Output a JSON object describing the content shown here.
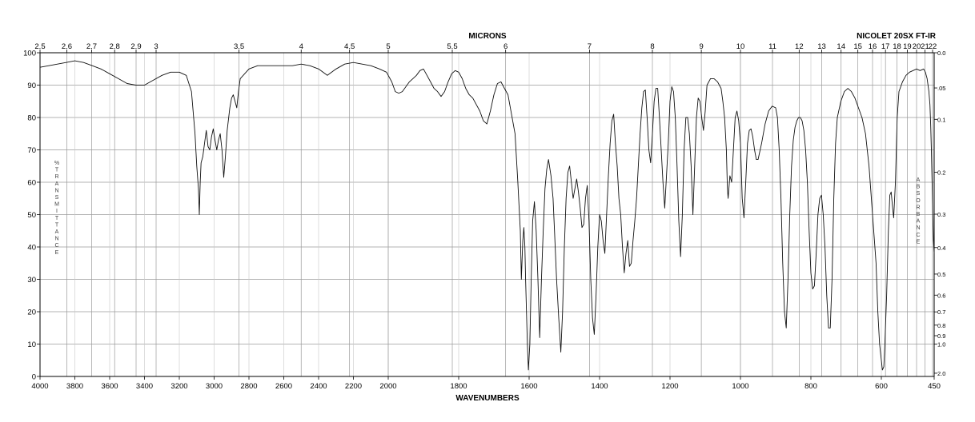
{
  "chart_data": {
    "type": "line",
    "top_title": "MICRONS",
    "instrument": "NICOLET 20SX FT-IR",
    "xlabel": "WAVENUMBERS",
    "ylabel_left": "%TRANSMITTANCE",
    "ylabel_right": "ABSORBANCE",
    "x_range": [
      4000,
      450
    ],
    "x_break": 2000,
    "y_range": [
      0,
      100
    ],
    "x_ticks": [
      4000,
      3800,
      3600,
      3400,
      3200,
      3000,
      2800,
      2600,
      2400,
      2200,
      2000,
      1800,
      1600,
      1400,
      1200,
      1000,
      800,
      600,
      450
    ],
    "y_ticks": [
      0,
      10,
      20,
      30,
      40,
      50,
      60,
      70,
      80,
      90,
      100
    ],
    "micron_ticks": [
      "2.5",
      "2.6",
      "2.7",
      "2.8",
      "2.9",
      "3",
      "3.5",
      "4",
      "4.5",
      "5",
      "5.5",
      "6",
      "7",
      "8",
      "9",
      "10",
      "11",
      "12",
      "13",
      "14",
      "15",
      "16",
      "17",
      "18",
      "19",
      "20",
      "21",
      "22"
    ],
    "absorbance_ticks": [
      "0.0",
      ".05",
      "0.1",
      "0.2",
      "0.3",
      "0.4",
      "0.5",
      "0.6",
      "0.7",
      "0.8",
      "0.9",
      "1.0",
      "2.0"
    ],
    "grid": true,
    "series": [
      {
        "points": [
          [
            4000,
            95.5
          ],
          [
            3950,
            96
          ],
          [
            3900,
            96.5
          ],
          [
            3850,
            97
          ],
          [
            3800,
            97.5
          ],
          [
            3750,
            97
          ],
          [
            3700,
            96
          ],
          [
            3650,
            95
          ],
          [
            3600,
            93.5
          ],
          [
            3550,
            92
          ],
          [
            3500,
            90.5
          ],
          [
            3450,
            90
          ],
          [
            3400,
            90
          ],
          [
            3350,
            91.5
          ],
          [
            3300,
            93
          ],
          [
            3250,
            94
          ],
          [
            3200,
            94
          ],
          [
            3160,
            93
          ],
          [
            3130,
            88
          ],
          [
            3110,
            75
          ],
          [
            3100,
            65
          ],
          [
            3090,
            58
          ],
          [
            3085,
            50
          ],
          [
            3080,
            60
          ],
          [
            3075,
            66
          ],
          [
            3065,
            68
          ],
          [
            3055,
            72
          ],
          [
            3045,
            76
          ],
          [
            3035,
            71
          ],
          [
            3025,
            70
          ],
          [
            3015,
            74
          ],
          [
            3005,
            76.5
          ],
          [
            2995,
            73
          ],
          [
            2985,
            70
          ],
          [
            2975,
            73
          ],
          [
            2965,
            75
          ],
          [
            2955,
            70
          ],
          [
            2945,
            61.5
          ],
          [
            2935,
            68
          ],
          [
            2925,
            76
          ],
          [
            2910,
            83
          ],
          [
            2900,
            86
          ],
          [
            2890,
            87
          ],
          [
            2880,
            85
          ],
          [
            2870,
            83
          ],
          [
            2860,
            88
          ],
          [
            2850,
            92
          ],
          [
            2800,
            95
          ],
          [
            2750,
            96
          ],
          [
            2700,
            96
          ],
          [
            2650,
            96
          ],
          [
            2600,
            96
          ],
          [
            2550,
            96
          ],
          [
            2500,
            96.5
          ],
          [
            2450,
            96
          ],
          [
            2400,
            95
          ],
          [
            2350,
            93
          ],
          [
            2300,
            95
          ],
          [
            2250,
            96.5
          ],
          [
            2200,
            97
          ],
          [
            2150,
            96.5
          ],
          [
            2100,
            96
          ],
          [
            2050,
            95
          ],
          [
            2010,
            94
          ],
          [
            1990,
            91
          ],
          [
            1980,
            88
          ],
          [
            1970,
            87.5
          ],
          [
            1960,
            88
          ],
          [
            1950,
            89.5
          ],
          [
            1940,
            91
          ],
          [
            1930,
            92
          ],
          [
            1920,
            93
          ],
          [
            1910,
            94.5
          ],
          [
            1900,
            95
          ],
          [
            1890,
            93
          ],
          [
            1880,
            91
          ],
          [
            1870,
            89
          ],
          [
            1860,
            88
          ],
          [
            1850,
            86.5
          ],
          [
            1840,
            88
          ],
          [
            1830,
            91
          ],
          [
            1820,
            93.5
          ],
          [
            1810,
            94.5
          ],
          [
            1800,
            94
          ],
          [
            1790,
            92
          ],
          [
            1780,
            89
          ],
          [
            1770,
            87
          ],
          [
            1760,
            86
          ],
          [
            1750,
            84
          ],
          [
            1740,
            82
          ],
          [
            1730,
            79
          ],
          [
            1720,
            78
          ],
          [
            1710,
            82
          ],
          [
            1700,
            87
          ],
          [
            1690,
            90.5
          ],
          [
            1680,
            91
          ],
          [
            1670,
            89
          ],
          [
            1660,
            87
          ],
          [
            1650,
            81
          ],
          [
            1640,
            75
          ],
          [
            1632,
            60
          ],
          [
            1625,
            45
          ],
          [
            1622,
            30
          ],
          [
            1618,
            42
          ],
          [
            1615,
            46
          ],
          [
            1612,
            40
          ],
          [
            1610,
            30
          ],
          [
            1605,
            10
          ],
          [
            1602,
            2
          ],
          [
            1598,
            10
          ],
          [
            1594,
            30
          ],
          [
            1590,
            48
          ],
          [
            1585,
            54
          ],
          [
            1580,
            45
          ],
          [
            1575,
            30
          ],
          [
            1570,
            12
          ],
          [
            1565,
            30
          ],
          [
            1560,
            45
          ],
          [
            1555,
            58
          ],
          [
            1550,
            64
          ],
          [
            1545,
            67
          ],
          [
            1538,
            62
          ],
          [
            1532,
            55
          ],
          [
            1528,
            45
          ],
          [
            1522,
            30
          ],
          [
            1516,
            18
          ],
          [
            1510,
            7.5
          ],
          [
            1505,
            20
          ],
          [
            1500,
            40
          ],
          [
            1495,
            55
          ],
          [
            1490,
            63
          ],
          [
            1485,
            65
          ],
          [
            1480,
            60
          ],
          [
            1475,
            55
          ],
          [
            1470,
            58
          ],
          [
            1465,
            61
          ],
          [
            1460,
            57
          ],
          [
            1455,
            52
          ],
          [
            1450,
            46
          ],
          [
            1445,
            47
          ],
          [
            1440,
            55
          ],
          [
            1435,
            59
          ],
          [
            1430,
            48
          ],
          [
            1425,
            30
          ],
          [
            1420,
            18
          ],
          [
            1415,
            13
          ],
          [
            1410,
            25
          ],
          [
            1405,
            40
          ],
          [
            1400,
            50
          ],
          [
            1395,
            48
          ],
          [
            1390,
            42
          ],
          [
            1385,
            38
          ],
          [
            1380,
            50
          ],
          [
            1375,
            62
          ],
          [
            1370,
            72
          ],
          [
            1365,
            79
          ],
          [
            1360,
            81
          ],
          [
            1355,
            72
          ],
          [
            1350,
            65
          ],
          [
            1345,
            55
          ],
          [
            1340,
            50
          ],
          [
            1335,
            40
          ],
          [
            1330,
            32
          ],
          [
            1325,
            38
          ],
          [
            1320,
            42
          ],
          [
            1315,
            34
          ],
          [
            1310,
            35
          ],
          [
            1305,
            42
          ],
          [
            1300,
            48
          ],
          [
            1295,
            55
          ],
          [
            1290,
            65
          ],
          [
            1285,
            75
          ],
          [
            1280,
            83
          ],
          [
            1275,
            88
          ],
          [
            1270,
            88.5
          ],
          [
            1265,
            80
          ],
          [
            1260,
            70
          ],
          [
            1255,
            66
          ],
          [
            1250,
            75
          ],
          [
            1245,
            85
          ],
          [
            1240,
            89
          ],
          [
            1235,
            89
          ],
          [
            1230,
            80
          ],
          [
            1225,
            70
          ],
          [
            1220,
            60
          ],
          [
            1215,
            52
          ],
          [
            1210,
            62
          ],
          [
            1205,
            72
          ],
          [
            1200,
            85
          ],
          [
            1195,
            89.5
          ],
          [
            1190,
            88
          ],
          [
            1185,
            80
          ],
          [
            1180,
            65
          ],
          [
            1175,
            48
          ],
          [
            1170,
            37
          ],
          [
            1165,
            50
          ],
          [
            1160,
            70
          ],
          [
            1155,
            80
          ],
          [
            1150,
            80
          ],
          [
            1145,
            75
          ],
          [
            1140,
            65
          ],
          [
            1135,
            50
          ],
          [
            1130,
            65
          ],
          [
            1125,
            80
          ],
          [
            1120,
            86
          ],
          [
            1115,
            85
          ],
          [
            1110,
            80
          ],
          [
            1105,
            76
          ],
          [
            1100,
            82
          ],
          [
            1095,
            90
          ],
          [
            1085,
            92
          ],
          [
            1075,
            92
          ],
          [
            1065,
            91
          ],
          [
            1055,
            89
          ],
          [
            1050,
            85
          ],
          [
            1045,
            80
          ],
          [
            1040,
            70
          ],
          [
            1037,
            58
          ],
          [
            1035,
            55
          ],
          [
            1030,
            62
          ],
          [
            1025,
            60
          ],
          [
            1020,
            70
          ],
          [
            1015,
            80
          ],
          [
            1010,
            82
          ],
          [
            1005,
            79
          ],
          [
            1000,
            72
          ],
          [
            995,
            55
          ],
          [
            990,
            49
          ],
          [
            985,
            60
          ],
          [
            980,
            72
          ],
          [
            975,
            76
          ],
          [
            970,
            76.5
          ],
          [
            965,
            74
          ],
          [
            960,
            70
          ],
          [
            955,
            67
          ],
          [
            950,
            67
          ],
          [
            940,
            72
          ],
          [
            930,
            78
          ],
          [
            920,
            82
          ],
          [
            910,
            83.5
          ],
          [
            900,
            83
          ],
          [
            895,
            80
          ],
          [
            890,
            70
          ],
          [
            885,
            55
          ],
          [
            880,
            35
          ],
          [
            875,
            20
          ],
          [
            870,
            15
          ],
          [
            865,
            30
          ],
          [
            860,
            50
          ],
          [
            855,
            65
          ],
          [
            850,
            73
          ],
          [
            845,
            77
          ],
          [
            840,
            79
          ],
          [
            835,
            80
          ],
          [
            830,
            80
          ],
          [
            825,
            79
          ],
          [
            820,
            76
          ],
          [
            815,
            70
          ],
          [
            810,
            60
          ],
          [
            805,
            45
          ],
          [
            800,
            32
          ],
          [
            795,
            27
          ],
          [
            790,
            28
          ],
          [
            785,
            38
          ],
          [
            780,
            50
          ],
          [
            775,
            55
          ],
          [
            770,
            56
          ],
          [
            765,
            50
          ],
          [
            760,
            40
          ],
          [
            755,
            25
          ],
          [
            750,
            15
          ],
          [
            745,
            15
          ],
          [
            740,
            30
          ],
          [
            735,
            55
          ],
          [
            730,
            72
          ],
          [
            725,
            80
          ],
          [
            715,
            85
          ],
          [
            705,
            88
          ],
          [
            695,
            89
          ],
          [
            685,
            88
          ],
          [
            675,
            86
          ],
          [
            665,
            83
          ],
          [
            655,
            80
          ],
          [
            645,
            75
          ],
          [
            635,
            65
          ],
          [
            625,
            50
          ],
          [
            615,
            35
          ],
          [
            610,
            20
          ],
          [
            605,
            10
          ],
          [
            600,
            5
          ],
          [
            597,
            2
          ],
          [
            593,
            3
          ],
          [
            590,
            10
          ],
          [
            585,
            25
          ],
          [
            580,
            45
          ],
          [
            576,
            56
          ],
          [
            572,
            57
          ],
          [
            568,
            52
          ],
          [
            565,
            49
          ],
          [
            560,
            60
          ],
          [
            555,
            80
          ],
          [
            550,
            88
          ],
          [
            540,
            91
          ],
          [
            530,
            93
          ],
          [
            520,
            94
          ],
          [
            510,
            94.5
          ],
          [
            500,
            95
          ],
          [
            490,
            94.5
          ],
          [
            480,
            95
          ],
          [
            475,
            94
          ],
          [
            470,
            92
          ],
          [
            465,
            88
          ],
          [
            462,
            84
          ],
          [
            460,
            78
          ],
          [
            458,
            70
          ],
          [
            456,
            60
          ],
          [
            454,
            50
          ],
          [
            452,
            42
          ],
          [
            450,
            38
          ]
        ]
      }
    ]
  }
}
